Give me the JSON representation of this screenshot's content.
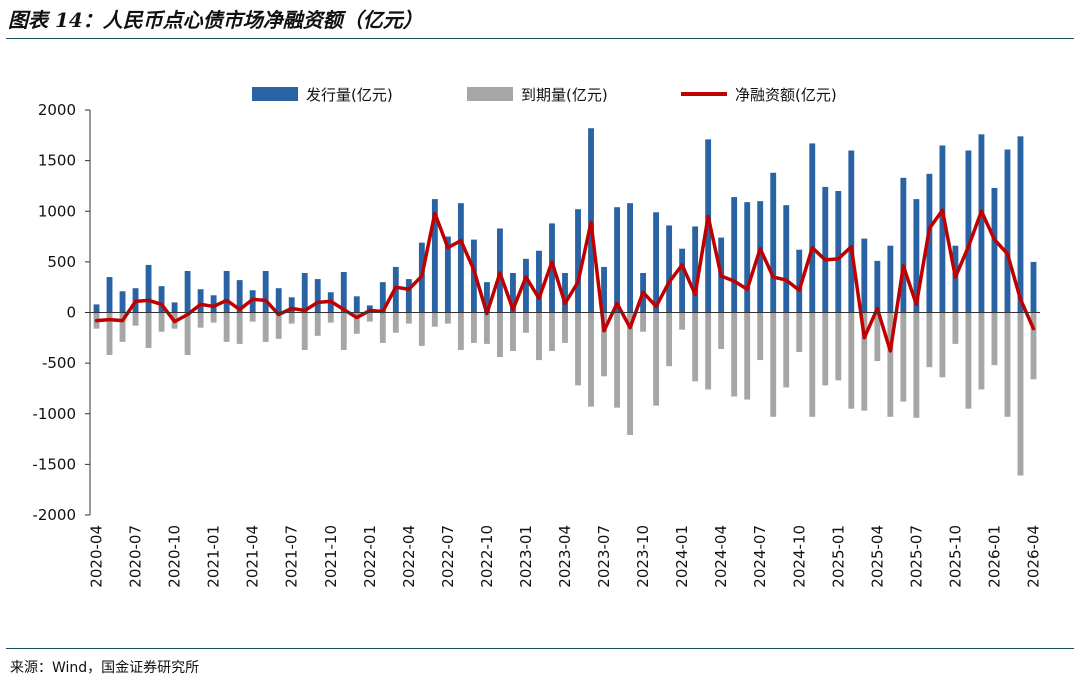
{
  "title": "图表 14：人民币点心债市场净融资额（亿元）",
  "source": "来源：Wind，国金证券研究所",
  "colors": {
    "issuance": "#2a63a3",
    "maturity": "#a6a6a6",
    "net": "#c00000",
    "rule": "#1a4e5e"
  },
  "chart_data": {
    "type": "bar+line",
    "title": "人民币点心债市场净融资额（亿元）",
    "ylim": [
      -2000,
      2000
    ],
    "yticks": [
      2000,
      1500,
      1000,
      500,
      0,
      -500,
      -1000,
      -1500,
      -2000
    ],
    "xtick_labels": [
      "2020-04",
      "2020-07",
      "2020-10",
      "2021-01",
      "2021-04",
      "2021-07",
      "2021-10",
      "2022-01",
      "2022-04",
      "2022-07",
      "2022-10",
      "2023-01",
      "2023-04",
      "2023-07",
      "2023-10",
      "2024-01",
      "2024-04",
      "2024-07",
      "2024-10",
      "2025-01",
      "2025-04",
      "2025-07",
      "2025-10",
      "2026-01",
      "2026-04"
    ],
    "categories": [
      "2020-04",
      "2020-05",
      "2020-06",
      "2020-07",
      "2020-08",
      "2020-09",
      "2020-10",
      "2020-11",
      "2020-12",
      "2021-01",
      "2021-02",
      "2021-03",
      "2021-04",
      "2021-05",
      "2021-06",
      "2021-07",
      "2021-08",
      "2021-09",
      "2021-10",
      "2021-11",
      "2021-12",
      "2022-01",
      "2022-02",
      "2022-03",
      "2022-04",
      "2022-05",
      "2022-06",
      "2022-07",
      "2022-08",
      "2022-09",
      "2022-10",
      "2022-11",
      "2022-12",
      "2023-01",
      "2023-02",
      "2023-03",
      "2023-04",
      "2023-05",
      "2023-06",
      "2023-07",
      "2023-08",
      "2023-09",
      "2023-10",
      "2023-11",
      "2023-12",
      "2024-01",
      "2024-02",
      "2024-03",
      "2024-04",
      "2024-05",
      "2024-06",
      "2024-07",
      "2024-08",
      "2024-09",
      "2024-10",
      "2024-11",
      "2024-12",
      "2025-01",
      "2025-02",
      "2025-03",
      "2025-04",
      "2025-05",
      "2025-06",
      "2025-07",
      "2025-08",
      "2025-09",
      "2025-10",
      "2025-11",
      "2025-12",
      "2026-01",
      "2026-02",
      "2026-03",
      "2026-04"
    ],
    "series": [
      {
        "name": "发行量(亿元)",
        "type": "bar",
        "values": [
          80,
          350,
          210,
          240,
          470,
          260,
          100,
          410,
          230,
          170,
          410,
          320,
          220,
          410,
          240,
          150,
          390,
          330,
          200,
          400,
          160,
          70,
          300,
          450,
          330,
          690,
          1120,
          750,
          1080,
          720,
          300,
          830,
          390,
          530,
          610,
          880,
          390,
          1020,
          1820,
          450,
          1040,
          1080,
          390,
          990,
          860,
          630,
          850,
          1710,
          740,
          1140,
          1090,
          1100,
          1380,
          1060,
          620,
          1670,
          1240,
          1200,
          1600,
          730,
          510,
          660,
          1330,
          1120,
          1370,
          1650,
          660,
          1600,
          1760,
          1230,
          1610,
          1740,
          500
        ]
      },
      {
        "name": "到期量(亿元)",
        "type": "bar",
        "values": [
          -160,
          -420,
          -290,
          -130,
          -350,
          -190,
          -160,
          -420,
          -150,
          -100,
          -290,
          -310,
          -90,
          -290,
          -260,
          -110,
          -370,
          -230,
          -100,
          -370,
          -210,
          -90,
          -300,
          -200,
          -110,
          -330,
          -140,
          -110,
          -370,
          -300,
          -310,
          -440,
          -380,
          -200,
          -470,
          -380,
          -300,
          -720,
          -930,
          -630,
          -940,
          -1210,
          -190,
          -920,
          -530,
          -170,
          -680,
          -760,
          -360,
          -830,
          -860,
          -470,
          -1030,
          -740,
          -390,
          -1030,
          -720,
          -670,
          -950,
          -970,
          -480,
          -1030,
          -880,
          -1040,
          -540,
          -640,
          -310,
          -950,
          -760,
          -520,
          -1030,
          -1610,
          -660
        ]
      },
      {
        "name": "净融资额(亿元)",
        "type": "line",
        "values": [
          -80,
          -70,
          -80,
          110,
          120,
          80,
          -90,
          -20,
          80,
          60,
          120,
          30,
          130,
          120,
          -20,
          40,
          20,
          100,
          110,
          30,
          -50,
          20,
          10,
          250,
          230,
          360,
          980,
          640,
          710,
          420,
          -10,
          390,
          30,
          350,
          140,
          500,
          90,
          300,
          890,
          -180,
          90,
          -150,
          200,
          60,
          300,
          470,
          180,
          950,
          360,
          310,
          230,
          630,
          350,
          320,
          220,
          640,
          520,
          530,
          650,
          -250,
          40,
          -380,
          460,
          80,
          830,
          1010,
          350,
          650,
          1000,
          720,
          580,
          130,
          -160
        ]
      }
    ],
    "legend": [
      "发行量(亿元)",
      "到期量(亿元)",
      "净融资额(亿元)"
    ],
    "legend_position": "top"
  }
}
